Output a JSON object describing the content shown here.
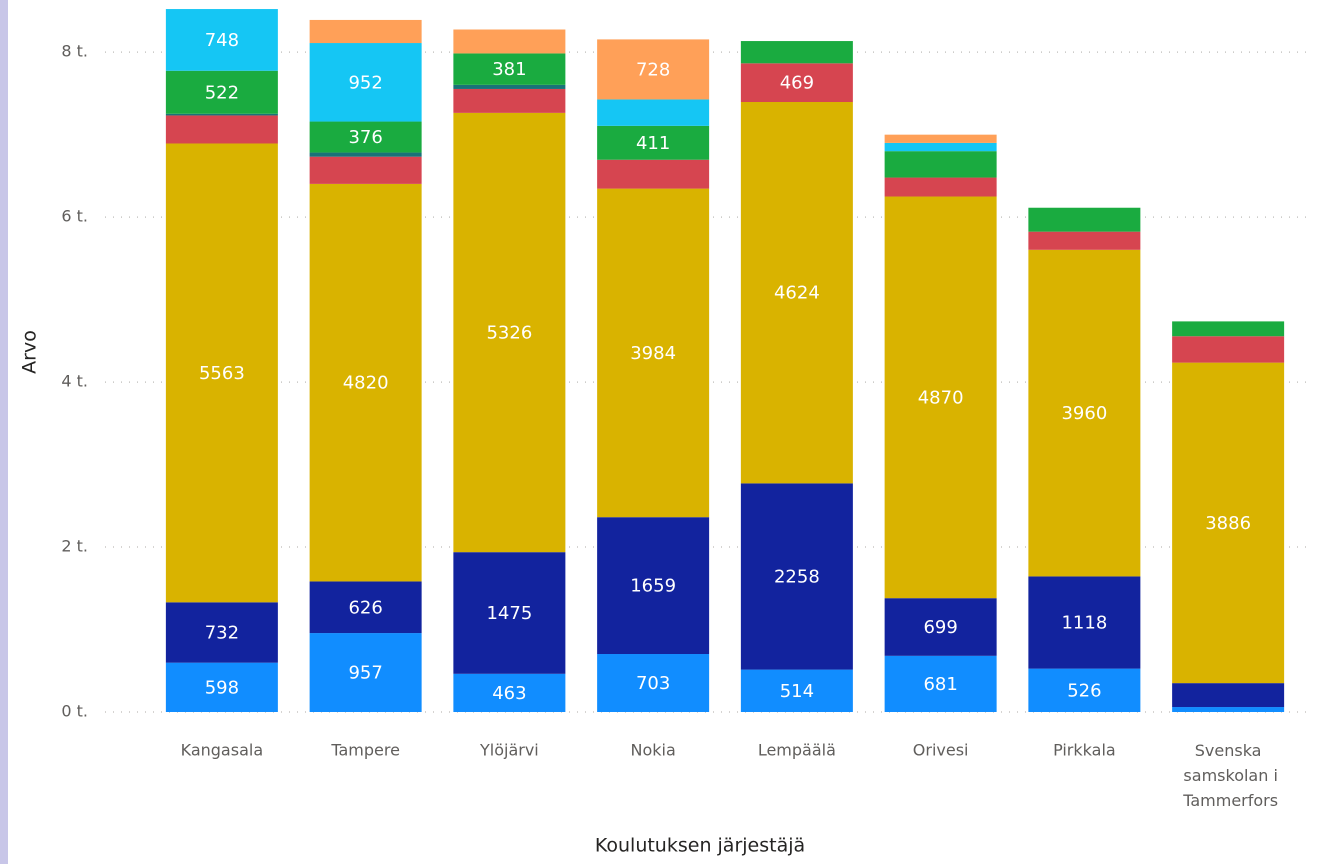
{
  "chart_data": {
    "type": "stacked_bar",
    "x_label": "Koulutuksen järjestäjä",
    "y_label": "Arvo",
    "categories": [
      "Kangasala",
      "Tampere",
      "Ylöjärvi",
      "Nokia",
      "Lempäälä",
      "Orivesi",
      "Pirkkala",
      "Svenska samskolan i Tammerfors"
    ],
    "series": [
      {
        "color": "#118DFF",
        "values": [
          598,
          957,
          463,
          703,
          514,
          681,
          526,
          60
        ]
      },
      {
        "color": "#12239E",
        "values": [
          732,
          626,
          1475,
          1659,
          2258,
          699,
          1118,
          290
        ]
      },
      {
        "color": "#D9B300",
        "values": [
          5563,
          4820,
          5326,
          3984,
          4624,
          4870,
          3960,
          3886
        ]
      },
      {
        "color": "#D64550",
        "values": [
          340,
          330,
          290,
          350,
          469,
          230,
          220,
          320
        ]
      },
      {
        "color": "#197278",
        "values": [
          20,
          50,
          50,
          null,
          null,
          null,
          null,
          null
        ]
      },
      {
        "color": "#1AAB40",
        "values": [
          522,
          376,
          381,
          411,
          270,
          320,
          290,
          180
        ]
      },
      {
        "color": "#15C6F4",
        "values": [
          748,
          952,
          null,
          320,
          null,
          100,
          null,
          null
        ]
      },
      {
        "color": "#FFA058",
        "values": [
          null,
          280,
          290,
          728,
          null,
          100,
          null,
          null
        ]
      }
    ],
    "ylim": [
      0,
      8560
    ],
    "yticks": [
      {
        "value": 0,
        "label": "0 t."
      },
      {
        "value": 2000,
        "label": "2 t."
      },
      {
        "value": 4000,
        "label": "4 t."
      },
      {
        "value": 6000,
        "label": "6 t."
      },
      {
        "value": 8000,
        "label": "8 t."
      }
    ],
    "grid": true
  }
}
